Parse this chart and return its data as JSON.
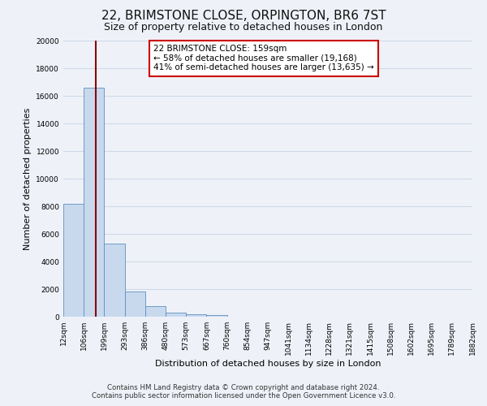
{
  "title": "22, BRIMSTONE CLOSE, ORPINGTON, BR6 7ST",
  "subtitle": "Size of property relative to detached houses in London",
  "bar_values": [
    8200,
    16600,
    5300,
    1850,
    750,
    270,
    200,
    100,
    0,
    0,
    0,
    0,
    0,
    0,
    0,
    0,
    0,
    0,
    0,
    0
  ],
  "x_labels": [
    "12sqm",
    "106sqm",
    "199sqm",
    "293sqm",
    "386sqm",
    "480sqm",
    "573sqm",
    "667sqm",
    "760sqm",
    "854sqm",
    "947sqm",
    "1041sqm",
    "1134sqm",
    "1228sqm",
    "1321sqm",
    "1415sqm",
    "1508sqm",
    "1602sqm",
    "1695sqm",
    "1789sqm",
    "1882sqm"
  ],
  "ylabel": "Number of detached properties",
  "xlabel": "Distribution of detached houses by size in London",
  "ylim": [
    0,
    20000
  ],
  "bar_color": "#c8d9ee",
  "bar_edge_color": "#5f8fbf",
  "property_label": "22 BRIMSTONE CLOSE: 159sqm",
  "pct_smaller": 58,
  "count_smaller": 19168,
  "pct_larger": 41,
  "count_larger": 13635,
  "vline_color": "#8b0000",
  "annotation_box_color": "#ffffff",
  "annotation_box_edgecolor": "#cc0000",
  "footer_line1": "Contains HM Land Registry data © Crown copyright and database right 2024.",
  "footer_line2": "Contains public sector information licensed under the Open Government Licence v3.0.",
  "bg_color": "#eef2f8",
  "plot_bg_color": "#eef2f8",
  "grid_color": "#d0d8e8",
  "title_fontsize": 11,
  "subtitle_fontsize": 9,
  "tick_fontsize": 6.5,
  "ylabel_fontsize": 8,
  "xlabel_fontsize": 8,
  "footer_fontsize": 6.2
}
